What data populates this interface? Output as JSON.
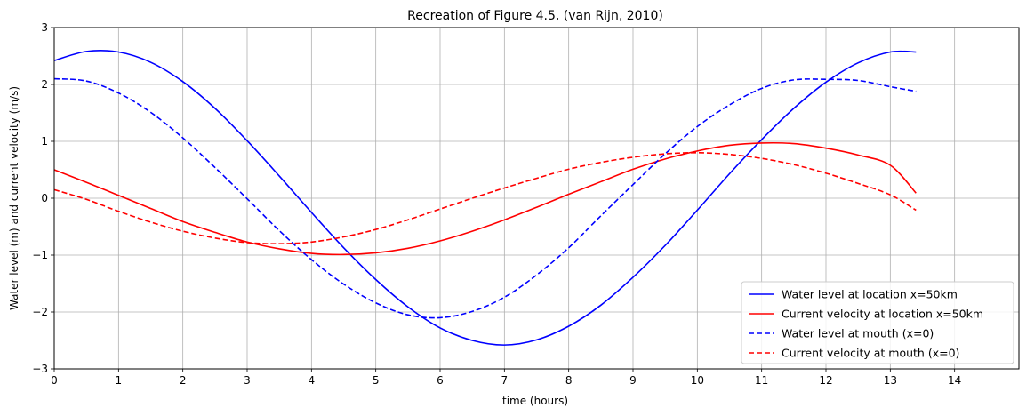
{
  "chart_data": {
    "type": "line",
    "title": "Recreation of Figure 4.5, (van Rijn, 2010)",
    "xlabel": "time (hours)",
    "ylabel": "Water level (m) and current velocity (m/s)",
    "xlim": [
      0,
      15
    ],
    "ylim": [
      -3,
      3
    ],
    "xticks": [
      "0",
      "1",
      "2",
      "3",
      "4",
      "5",
      "6",
      "7",
      "8",
      "9",
      "10",
      "11",
      "12",
      "13",
      "14"
    ],
    "yticks": [
      "−3",
      "−2",
      "−1",
      "0",
      "1",
      "2",
      "3"
    ],
    "grid": true,
    "legend_position": "lower-right",
    "x": [
      0,
      0.5,
      1,
      1.5,
      2,
      2.5,
      3,
      3.5,
      4,
      4.5,
      5,
      5.5,
      6,
      6.5,
      7,
      7.5,
      8,
      8.5,
      9,
      9.5,
      10,
      10.5,
      11,
      11.5,
      12,
      12.5,
      13,
      13.4
    ],
    "series": [
      {
        "name": "Water level at location x=50km",
        "color": "#0000ff",
        "style": "solid",
        "values": [
          2.42,
          2.58,
          2.57,
          2.39,
          2.05,
          1.58,
          1.01,
          0.39,
          -0.25,
          -0.87,
          -1.43,
          -1.91,
          -2.28,
          -2.5,
          -2.58,
          -2.49,
          -2.25,
          -1.88,
          -1.39,
          -0.83,
          -0.21,
          0.43,
          1.03,
          1.58,
          2.04,
          2.38,
          2.57,
          2.57
        ]
      },
      {
        "name": "Current velocity at location x=50km",
        "color": "#ff0000",
        "style": "solid",
        "values": [
          0.5,
          0.28,
          0.05,
          -0.18,
          -0.41,
          -0.6,
          -0.77,
          -0.89,
          -0.97,
          -0.99,
          -0.96,
          -0.88,
          -0.75,
          -0.58,
          -0.38,
          -0.16,
          0.07,
          0.29,
          0.51,
          0.69,
          0.83,
          0.93,
          0.97,
          0.96,
          0.88,
          0.76,
          0.58,
          0.09
        ]
      },
      {
        "name": "Water level at mouth (x=0)",
        "color": "#0000ff",
        "style": "dashed",
        "values": [
          2.1,
          2.06,
          1.85,
          1.51,
          1.06,
          0.54,
          -0.01,
          -0.57,
          -1.08,
          -1.51,
          -1.84,
          -2.05,
          -2.1,
          -1.99,
          -1.74,
          -1.35,
          -0.87,
          -0.31,
          0.24,
          0.78,
          1.26,
          1.64,
          1.93,
          2.08,
          2.09,
          2.07,
          1.96,
          1.88
        ]
      },
      {
        "name": "Current velocity at mouth (x=0)",
        "color": "#ff0000",
        "style": "dashed",
        "values": [
          0.15,
          -0.02,
          -0.23,
          -0.42,
          -0.58,
          -0.7,
          -0.78,
          -0.8,
          -0.77,
          -0.68,
          -0.55,
          -0.38,
          -0.19,
          0.0,
          0.18,
          0.35,
          0.51,
          0.63,
          0.72,
          0.78,
          0.8,
          0.77,
          0.7,
          0.59,
          0.44,
          0.26,
          0.06,
          -0.21
        ]
      }
    ]
  }
}
